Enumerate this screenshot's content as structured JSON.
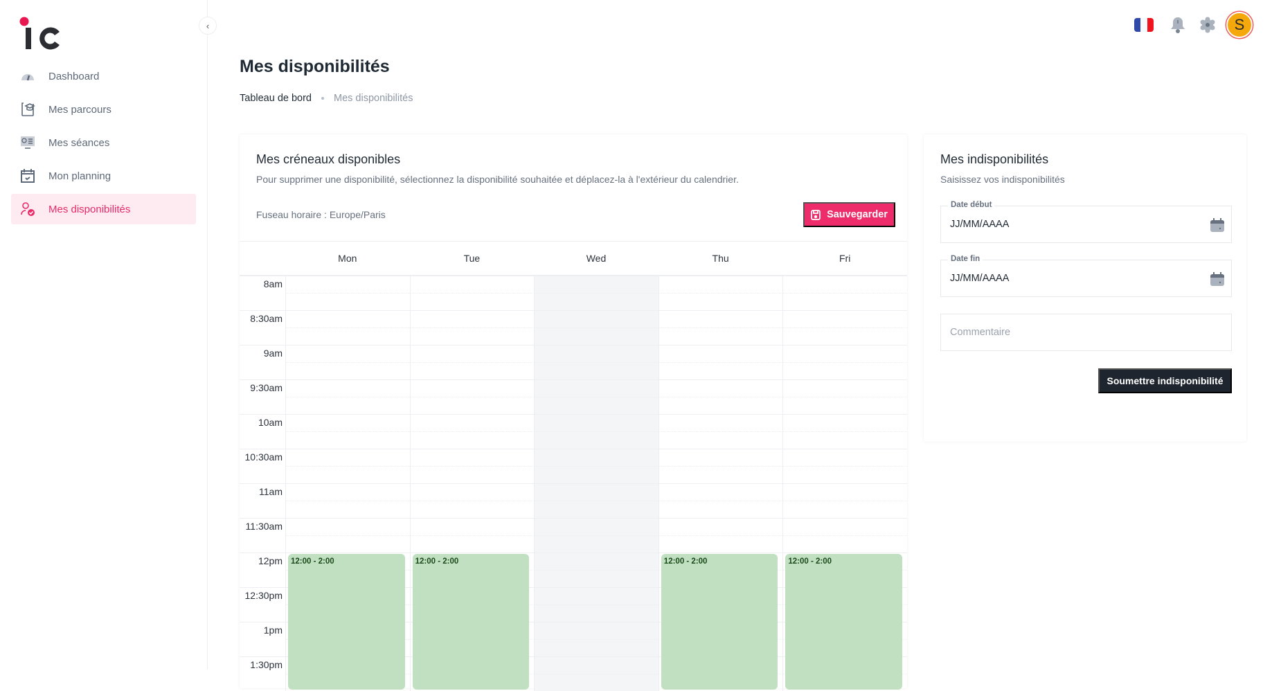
{
  "sidebar": {
    "collapse_icon": "chevron-left-icon",
    "items": [
      {
        "label": "Dashboard",
        "icon": "gauge-icon",
        "active": false
      },
      {
        "label": "Mes parcours",
        "icon": "graduation-cap-icon",
        "active": false
      },
      {
        "label": "Mes séances",
        "icon": "presentation-icon",
        "active": false
      },
      {
        "label": "Mon planning",
        "icon": "calendar-check-icon",
        "active": false
      },
      {
        "label": "Mes disponibilités",
        "icon": "user-check-icon",
        "active": true
      }
    ]
  },
  "topbar": {
    "language": "fr",
    "avatar_initial": "S"
  },
  "header": {
    "title": "Mes disponibilités",
    "breadcrumb": [
      "Tableau de bord",
      "Mes disponibilités"
    ]
  },
  "availability": {
    "title": "Mes créneaux disponibles",
    "subtitle": "Pour supprimer une disponibilité, sélectionnez la disponibilité souhaitée et déplacez-la à l'extérieur du calendrier.",
    "timezone": "Fuseau horaire : Europe/Paris",
    "save_label": "Sauvegarder",
    "days": [
      "Mon",
      "Tue",
      "Wed",
      "Thu",
      "Fri"
    ],
    "disabled_day": "Wed",
    "times": [
      "8am",
      "8:30am",
      "9am",
      "9:30am",
      "10am",
      "10:30am",
      "11am",
      "11:30am",
      "12pm",
      "12:30pm",
      "1pm",
      "1:30pm"
    ],
    "events": [
      {
        "day": "Mon",
        "start": "12:00",
        "end": "14:00",
        "label": "12:00 - 2:00"
      },
      {
        "day": "Tue",
        "start": "12:00",
        "end": "14:00",
        "label": "12:00 - 2:00"
      },
      {
        "day": "Thu",
        "start": "12:00",
        "end": "14:00",
        "label": "12:00 - 2:00"
      },
      {
        "day": "Fri",
        "start": "12:00",
        "end": "14:00",
        "label": "12:00 - 2:00"
      }
    ],
    "event_color": "#c1e0c1"
  },
  "unavailability": {
    "title": "Mes indisponibilités",
    "subtitle": "Saisissez vos indisponibilités",
    "start_label": "Date début",
    "start_value": "JJ/MM/AAAA",
    "end_label": "Date fin",
    "end_value": "JJ/MM/AAAA",
    "comment_placeholder": "Commentaire",
    "submit_label": "Soumettre indisponibilité"
  },
  "colors": {
    "accent": "#ee2c6b",
    "dark": "#1e252e"
  }
}
